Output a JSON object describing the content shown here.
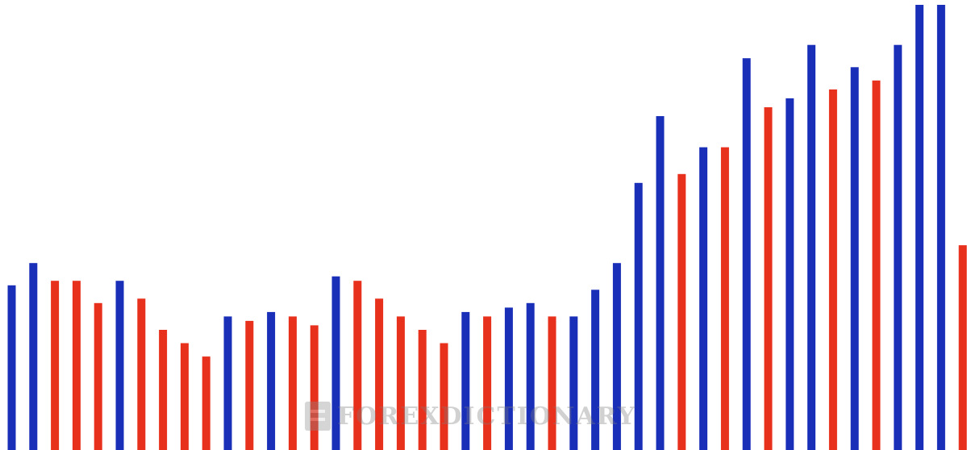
{
  "chart_data": {
    "type": "bar",
    "title": "",
    "xlabel": "",
    "ylabel": "",
    "ylim": [
      0,
      100
    ],
    "grid": false,
    "legend": "none",
    "colors": {
      "up": "#1a2fb8",
      "down": "#e8311d"
    },
    "values": [
      37,
      42,
      38,
      38,
      33,
      38,
      34,
      27,
      24,
      21,
      30,
      29,
      31,
      30,
      28,
      39,
      38,
      34,
      30,
      27,
      24,
      31,
      30,
      32,
      33,
      30,
      30,
      36,
      42,
      60,
      75,
      62,
      68,
      68,
      88,
      77,
      79,
      91,
      81,
      86,
      83,
      91,
      100,
      100,
      46
    ],
    "directions": [
      "up",
      "up",
      "down",
      "down",
      "down",
      "up",
      "down",
      "down",
      "down",
      "down",
      "up",
      "down",
      "up",
      "down",
      "down",
      "up",
      "down",
      "down",
      "down",
      "down",
      "down",
      "up",
      "down",
      "up",
      "up",
      "down",
      "up",
      "up",
      "up",
      "up",
      "up",
      "down",
      "up",
      "down",
      "up",
      "down",
      "up",
      "up",
      "down",
      "up",
      "down",
      "up",
      "up",
      "up",
      "down"
    ]
  },
  "watermark": {
    "text": "FOREXDICTIONARY"
  }
}
